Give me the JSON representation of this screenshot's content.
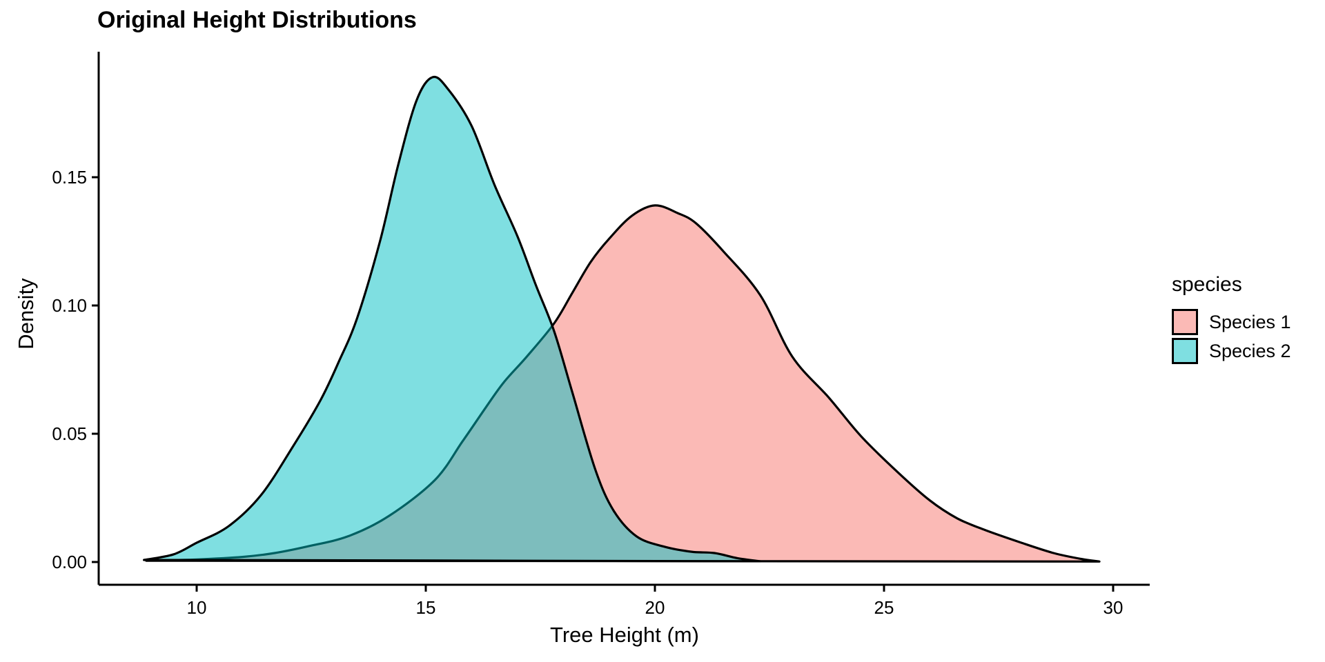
{
  "figure": {
    "title": "Original Height Distributions",
    "x_axis": {
      "label": "Tree Height (m)"
    },
    "y_axis": {
      "label": "Density"
    }
  },
  "legend": {
    "title": "species",
    "fill_alpha": 0.5,
    "stroke_color": "#000000",
    "entries": [
      {
        "label": "Species 1",
        "color": "#F8766D"
      },
      {
        "label": "Species 2",
        "color": "#00BFC4"
      }
    ]
  },
  "chart_data": {
    "type": "area",
    "subtype": "kernel-density",
    "title": "Original Height Distributions",
    "xlabel": "Tree Height (m)",
    "ylabel": "Density",
    "xlim": [
      7.9,
      30.8
    ],
    "ylim": [
      0,
      0.195
    ],
    "grid": false,
    "legend_position": "right",
    "x_ticks": [
      {
        "value": 10,
        "label": "10"
      },
      {
        "value": 15,
        "label": "15"
      },
      {
        "value": 20,
        "label": "20"
      },
      {
        "value": 25,
        "label": "25"
      },
      {
        "value": 30,
        "label": "30"
      }
    ],
    "y_ticks": [
      {
        "value": 0.0,
        "label": "0.00"
      },
      {
        "value": 0.05,
        "label": "0.05"
      },
      {
        "value": 0.1,
        "label": "0.10"
      },
      {
        "value": 0.15,
        "label": "0.15"
      }
    ],
    "series": [
      {
        "name": "Species 1",
        "color": "#F8766D",
        "peak": {
          "x": 20.0,
          "density": 0.139
        },
        "points": [
          [
            8.9,
            0.0005
          ],
          [
            10.0,
            0.001
          ],
          [
            11.0,
            0.002
          ],
          [
            11.7,
            0.0035
          ],
          [
            12.4,
            0.006
          ],
          [
            13.3,
            0.01
          ],
          [
            14.2,
            0.018
          ],
          [
            15.2,
            0.032
          ],
          [
            15.8,
            0.047
          ],
          [
            16.3,
            0.06
          ],
          [
            16.7,
            0.07
          ],
          [
            17.2,
            0.08
          ],
          [
            17.8,
            0.093
          ],
          [
            18.2,
            0.105
          ],
          [
            18.6,
            0.117
          ],
          [
            19.0,
            0.126
          ],
          [
            19.5,
            0.135
          ],
          [
            20.0,
            0.139
          ],
          [
            20.5,
            0.136
          ],
          [
            20.9,
            0.132
          ],
          [
            21.5,
            0.121
          ],
          [
            22.3,
            0.104
          ],
          [
            23.0,
            0.08
          ],
          [
            23.8,
            0.064
          ],
          [
            24.5,
            0.049
          ],
          [
            25.3,
            0.035
          ],
          [
            26.0,
            0.024
          ],
          [
            26.6,
            0.017
          ],
          [
            27.2,
            0.0125
          ],
          [
            28.0,
            0.0075
          ],
          [
            28.7,
            0.0035
          ],
          [
            29.3,
            0.0012
          ],
          [
            29.7,
            0.0002
          ]
        ]
      },
      {
        "name": "Species 2",
        "color": "#00BFC4",
        "peak": {
          "x": 15.1,
          "density": 0.189
        },
        "points": [
          [
            8.85,
            0.0008
          ],
          [
            9.5,
            0.003
          ],
          [
            10.0,
            0.0075
          ],
          [
            10.7,
            0.014
          ],
          [
            11.4,
            0.026
          ],
          [
            12.1,
            0.045
          ],
          [
            12.7,
            0.063
          ],
          [
            13.1,
            0.078
          ],
          [
            13.5,
            0.095
          ],
          [
            14.0,
            0.125
          ],
          [
            14.4,
            0.155
          ],
          [
            14.8,
            0.18
          ],
          [
            15.15,
            0.189
          ],
          [
            15.5,
            0.184
          ],
          [
            16.0,
            0.17
          ],
          [
            16.5,
            0.147
          ],
          [
            17.0,
            0.127
          ],
          [
            17.4,
            0.108
          ],
          [
            17.8,
            0.09
          ],
          [
            18.2,
            0.066
          ],
          [
            18.7,
            0.036
          ],
          [
            19.1,
            0.02
          ],
          [
            19.6,
            0.01
          ],
          [
            20.2,
            0.006
          ],
          [
            20.8,
            0.004
          ],
          [
            21.3,
            0.0035
          ],
          [
            21.8,
            0.0015
          ],
          [
            22.3,
            0.0003
          ]
        ]
      }
    ],
    "crossing_point": {
      "x": 17.8,
      "density": 0.091
    }
  }
}
